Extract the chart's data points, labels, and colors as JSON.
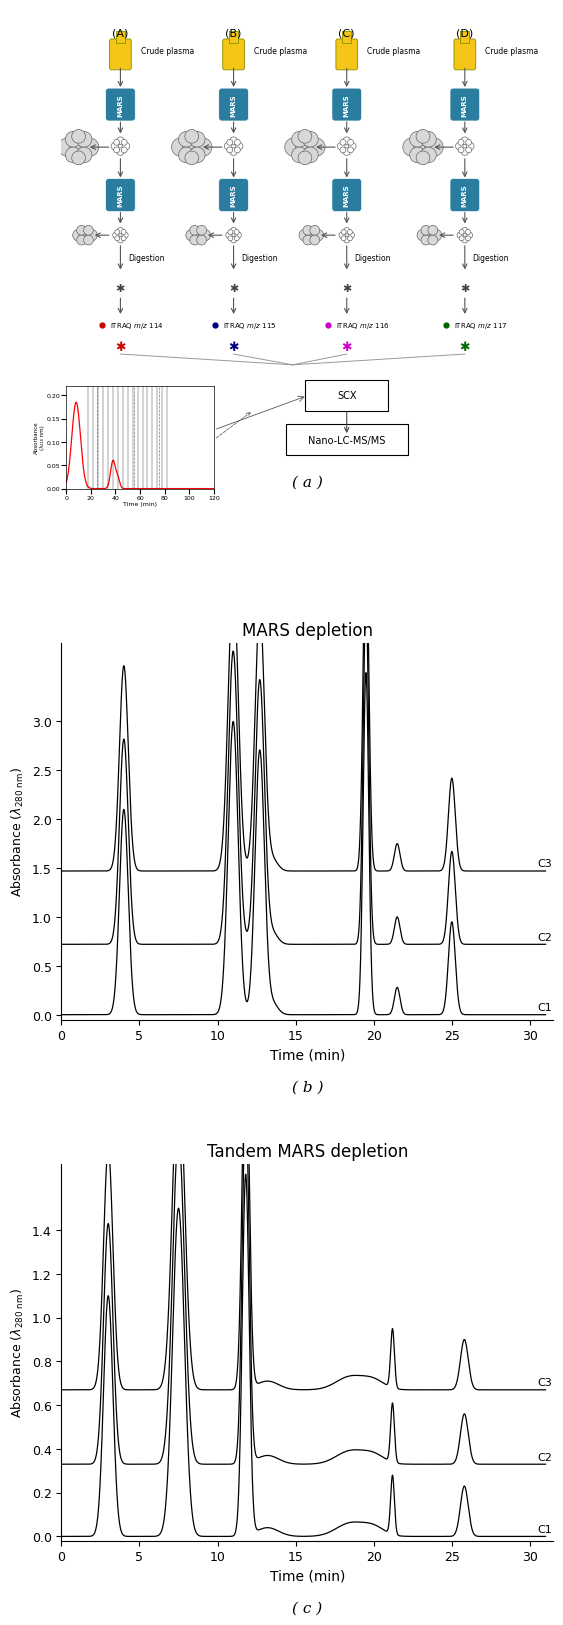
{
  "title_b": "MARS depletion",
  "title_c": "Tandem MARS depletion",
  "label_a": "( a )",
  "label_b": "( b )",
  "label_c": "( c )",
  "ylabel_b": "Absorbance (λ₀ nm)",
  "ylabel_c": "Absorbance (λ₀ nm)",
  "xlabel_b": "Time (min)",
  "xlabel_c": "Time (min)",
  "xlim": [
    0,
    31
  ],
  "ylim_b": [
    -0.1,
    3.8
  ],
  "ylim_c": [
    -0.02,
    1.65
  ],
  "yticks_b": [
    0,
    0.5,
    1.0,
    1.5,
    2.0,
    2.5,
    3.0
  ],
  "yticks_c": [
    0,
    0.2,
    0.4,
    0.6,
    0.8,
    1.0,
    1.2,
    1.4
  ],
  "xticks": [
    0,
    5,
    10,
    15,
    20,
    25,
    30
  ],
  "itraq_colors": [
    "#cc0000",
    "#000080",
    "#cc00cc",
    "#006600"
  ],
  "digestion_label": "Digestion",
  "scx_label": "SCX",
  "nano_label": "Nano-LC-MS/MS",
  "scx_ylabel": "Absorbance (λ218 nm)",
  "scx_xlabel": "Time (min)",
  "scx_xlim": [
    0,
    120
  ],
  "scx_ylim": [
    0,
    0.22
  ],
  "scx_yticks": [
    0,
    0.05,
    0.1,
    0.15,
    0.2
  ],
  "scx_xticks": [
    0,
    20,
    40,
    60,
    80,
    100,
    120
  ],
  "background_color": "#ffffff",
  "mars_color": "#2a7d9e",
  "b_offsets": [
    0.0,
    0.72,
    1.47
  ],
  "c_offsets": [
    0.0,
    0.33,
    0.67
  ],
  "b_baseline_c2": 0.72,
  "b_baseline_c3": 1.47,
  "c_baseline_c2": 0.33,
  "c_baseline_c3": 0.67
}
